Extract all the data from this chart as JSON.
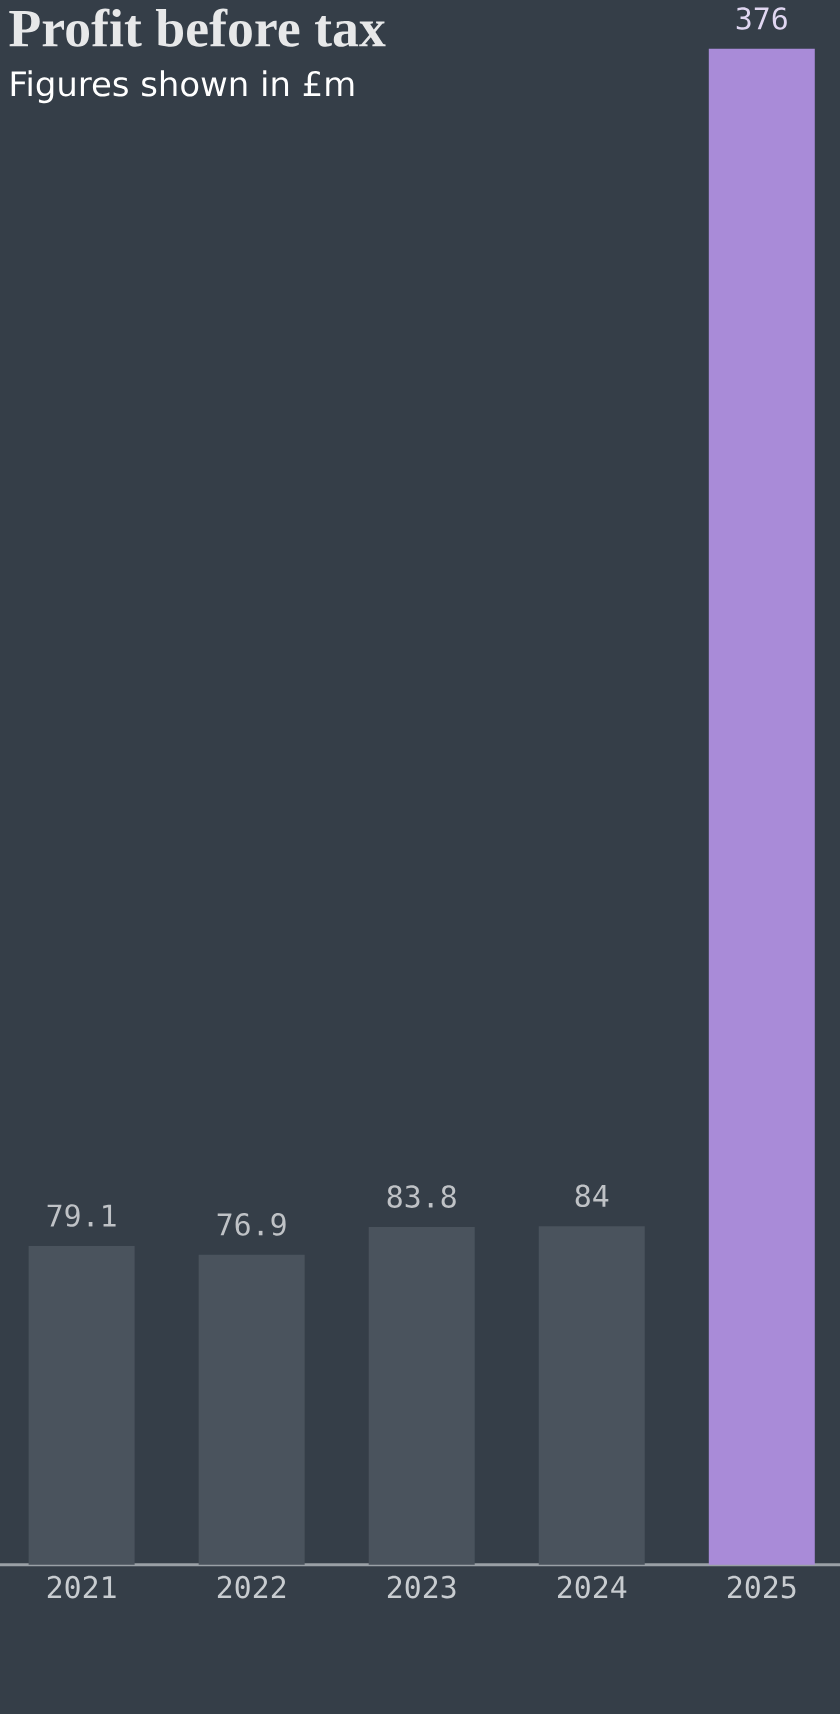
{
  "chart_data": {
    "type": "bar",
    "title": "Profit before tax",
    "subtitle": "Figures shown in £m",
    "categories": [
      "2021",
      "2022",
      "2023",
      "2024",
      "2025"
    ],
    "values": [
      79.1,
      76.9,
      83.8,
      84,
      376
    ],
    "colors": [
      "#4a535d",
      "#4a535d",
      "#4a535d",
      "#4a535d",
      "#a98bd8"
    ],
    "data_labels": true
  }
}
